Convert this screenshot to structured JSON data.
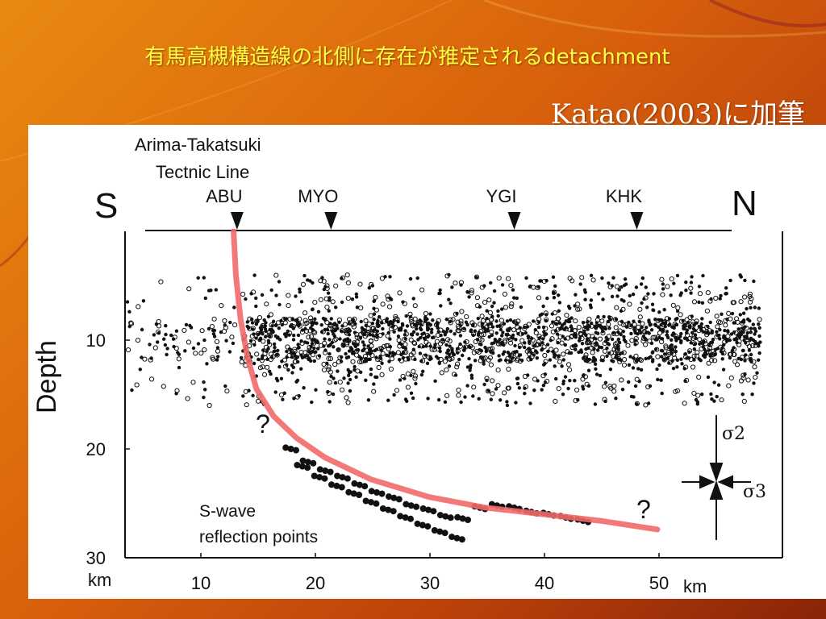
{
  "slide": {
    "title": "有馬高槻構造線の北側に存在が推定されるdetachment",
    "credit": "Katao(2003)に加筆",
    "colors": {
      "title_text": "#ffff40",
      "background": "#d8600c",
      "detachment_line": "#f26a6a"
    }
  },
  "figure": {
    "fault_label_line1": "Arima-Takatsuki",
    "fault_label_line2": "Tectnic Line",
    "left_dir": "S",
    "right_dir": "N",
    "stations": [
      {
        "name": "ABU",
        "km": 13.3
      },
      {
        "name": "MYO",
        "km": 21.5
      },
      {
        "name": "YGI",
        "km": 37.5
      },
      {
        "name": "KHK",
        "km": 48.2
      }
    ],
    "question_mark_1": "?",
    "question_mark_2": "?",
    "reflection_label_line1": "S-wave",
    "reflection_label_line2": "reflection points",
    "stress_label_vertical": "σ2",
    "stress_label_horizontal": "σ3",
    "x_unit": "km",
    "y_unit": "km"
  },
  "chart_data": {
    "type": "scatter",
    "ylabel": "Depth",
    "x_ticks": [
      10,
      20,
      30,
      40,
      50
    ],
    "y_ticks": [
      10,
      20,
      30
    ],
    "xlim": [
      0,
      60
    ],
    "ylim": [
      30,
      0
    ],
    "series": [
      {
        "name": "",
        "role": "seismicity",
        "description_point_cloud": true,
        "x_range_km": [
          0,
          60
        ],
        "depth_band_km": [
          4,
          16
        ],
        "densest_depth_km": [
          8,
          12
        ]
      },
      {
        "name": "",
        "role": "reflection_points",
        "x": [
          18.0,
          19.5,
          21.0,
          22.5,
          24.0,
          25.5,
          27.0,
          28.5,
          30.0,
          31.5,
          33.0,
          34.5,
          36.0,
          37.5,
          39.0,
          40.5,
          42.0,
          43.5
        ],
        "y": [
          20.0,
          21.2,
          22.0,
          22.6,
          23.3,
          24.0,
          24.5,
          25.2,
          25.6,
          26.2,
          26.4,
          25.4,
          25.2,
          25.4,
          25.8,
          26.0,
          26.3,
          26.6
        ]
      },
      {
        "name": "",
        "role": "reflection_points_lower_branch",
        "x": [
          19.0,
          20.5,
          22.0,
          23.5,
          25.0,
          26.5,
          28.0,
          29.5,
          31.0,
          32.5
        ],
        "y": [
          21.6,
          22.6,
          23.4,
          24.1,
          24.9,
          25.6,
          26.3,
          27.0,
          27.6,
          28.2
        ]
      },
      {
        "name": "",
        "role": "detachment_curve",
        "x": [
          13.0,
          13.2,
          13.6,
          14.2,
          15.0,
          16.5,
          18.5,
          21.0,
          25.0,
          30.0,
          35.0,
          40.0,
          45.0,
          50.0
        ],
        "y": [
          0.0,
          4.0,
          8.0,
          11.5,
          14.5,
          17.0,
          19.0,
          20.8,
          22.8,
          24.4,
          25.4,
          26.0,
          26.6,
          27.4
        ]
      }
    ]
  }
}
